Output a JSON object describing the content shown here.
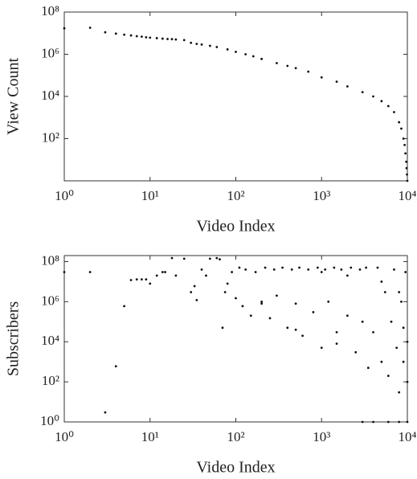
{
  "chart_data": [
    {
      "type": "scatter",
      "x_label": "Video Index",
      "y_label": "View Count",
      "log_x": true,
      "log_y": true,
      "color": "#111111",
      "xlim": [
        1,
        10000
      ],
      "ylim": [
        1,
        100000000
      ],
      "xticks": [
        {
          "value": 1,
          "label": "10⁰"
        },
        {
          "value": 10,
          "label": "10¹"
        },
        {
          "value": 100,
          "label": "10²"
        },
        {
          "value": 1000,
          "label": "10³"
        },
        {
          "value": 10000,
          "label": "10⁴"
        }
      ],
      "yticks": [
        {
          "value": 100,
          "label": "10²"
        },
        {
          "value": 10000,
          "label": "10⁴"
        },
        {
          "value": 1000000,
          "label": "10⁶"
        },
        {
          "value": 100000000,
          "label": "10⁸"
        }
      ],
      "x": [
        1,
        2,
        3,
        4,
        5,
        6,
        7,
        8,
        9,
        10,
        12,
        14,
        16,
        18,
        20,
        25,
        30,
        35,
        40,
        50,
        60,
        80,
        100,
        130,
        160,
        200,
        300,
        400,
        500,
        700,
        1000,
        1500,
        2000,
        3000,
        4000,
        5000,
        6000,
        7000,
        8000,
        8500,
        9000,
        9300,
        9500,
        9700,
        9800,
        9900,
        10000
      ],
      "values": [
        17000000,
        18000000,
        11000000,
        9500000,
        8500000,
        7800000,
        7200000,
        6800000,
        6400000,
        6100000,
        5800000,
        5500000,
        5300000,
        5200000,
        5000000,
        4700000,
        3500000,
        3100000,
        2900000,
        2500000,
        2200000,
        1700000,
        1300000,
        1000000,
        800000,
        600000,
        380000,
        280000,
        220000,
        150000,
        80000,
        50000,
        30000,
        16000,
        10000,
        6000,
        3500,
        1800,
        600,
        300,
        100,
        50,
        20,
        8,
        4,
        2,
        1
      ]
    },
    {
      "type": "scatter",
      "x_label": "Video Index",
      "y_label": "Subscribers",
      "log_x": true,
      "log_y": true,
      "color": "#111111",
      "xlim": [
        1,
        10000
      ],
      "ylim": [
        1,
        200000000
      ],
      "xticks": [
        {
          "value": 1,
          "label": "10⁰"
        },
        {
          "value": 10,
          "label": "10¹"
        },
        {
          "value": 100,
          "label": "10²"
        },
        {
          "value": 1000,
          "label": "10³"
        },
        {
          "value": 10000,
          "label": "10⁴"
        }
      ],
      "yticks": [
        {
          "value": 1,
          "label": "10⁰"
        },
        {
          "value": 100,
          "label": "10²"
        },
        {
          "value": 10000,
          "label": "10⁴"
        },
        {
          "value": 1000000,
          "label": "10⁶"
        },
        {
          "value": 100000000,
          "label": "10⁸"
        }
      ],
      "x": [
        1,
        2,
        3,
        4,
        5,
        6,
        7,
        8,
        9,
        10,
        12,
        14,
        15,
        18,
        20,
        25,
        30,
        33,
        35,
        40,
        45,
        50,
        60,
        65,
        70,
        75,
        80,
        90,
        100,
        110,
        120,
        130,
        150,
        170,
        200,
        220,
        250,
        280,
        300,
        350,
        400,
        450,
        500,
        550,
        600,
        700,
        800,
        900,
        1000,
        1100,
        1200,
        1400,
        1500,
        1700,
        2000,
        2200,
        2500,
        2800,
        3000,
        3300,
        3500,
        4000,
        4500,
        5000,
        5500,
        6000,
        6500,
        7000,
        7500,
        8000,
        8500,
        9000,
        9500,
        10000,
        3000,
        4000,
        6000,
        8000,
        10000,
        1000,
        2000,
        5000,
        8000,
        9000,
        10000,
        200,
        500,
        1500
      ],
      "values": [
        30000000,
        30000000,
        3,
        600,
        600000,
        12000000,
        13000000,
        13000000,
        13000000,
        8000000,
        20000000,
        30000000,
        30000000,
        150000000,
        20000000,
        140000000,
        3000000,
        6000000,
        1200000,
        40000000,
        20000000,
        140000000,
        150000000,
        130000000,
        50000,
        3000000,
        8000000,
        30000000,
        1500000,
        50000000,
        600000,
        40000000,
        200000,
        30000000,
        1000000,
        50000000,
        150000,
        40000000,
        2000000,
        50000000,
        50000,
        40000000,
        800000,
        50000000,
        20000,
        40000000,
        300000,
        50000000,
        5000,
        40000000,
        1000000,
        50000000,
        30000,
        40000000,
        200000,
        50000000,
        3000,
        40000000,
        100000,
        50000000,
        500,
        30000,
        50000000,
        1000,
        3000000,
        200,
        100000,
        40000000,
        5000,
        30,
        1000000,
        50000,
        30000000,
        10000,
        1,
        1,
        1,
        1,
        1,
        30000000,
        20000000,
        10000000,
        3000000,
        1000,
        100,
        800000,
        40000,
        8000
      ]
    }
  ]
}
